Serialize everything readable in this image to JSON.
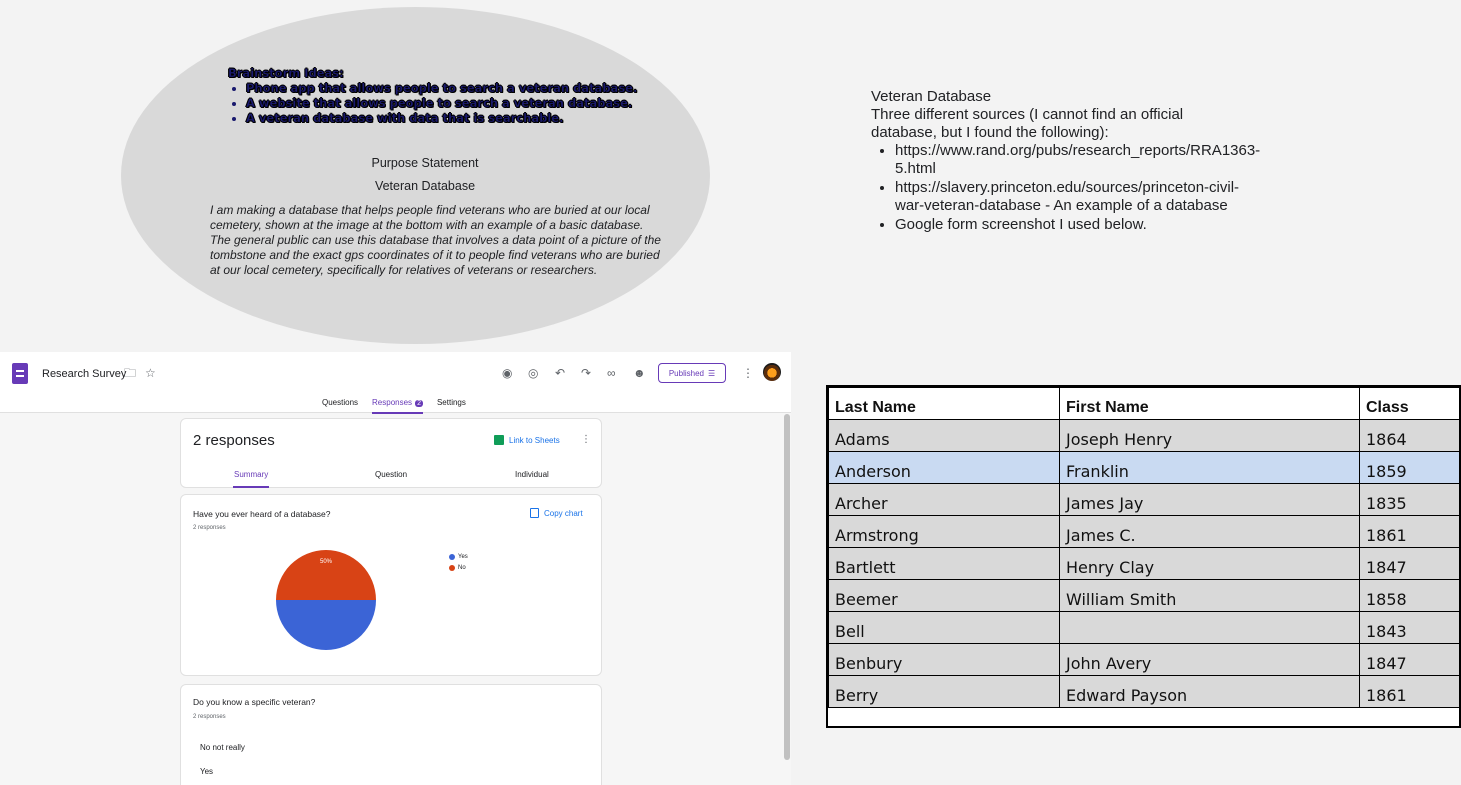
{
  "brainstorm": {
    "heading": "Brainstorm Ideas:",
    "items": [
      "Phone app that allows people to search a veteran database.",
      "A website that allows people to search a veteran database.",
      "A veteran database with data that is searchable."
    ]
  },
  "purpose": {
    "title": "Purpose Statement",
    "subtitle": "Veteran Database",
    "text": "I am making a database that helps people find veterans who are buried at our local cemetery, shown at the image at the bottom with an example of a basic database.  The general public can use this database that involves a data point of a picture of the tombstone and the exact gps coordinates of it to people find veterans who are buried at our local cemetery, specifically for relatives of veterans or researchers."
  },
  "notes": {
    "title": "Veteran Database",
    "intro": "Three different sources (I cannot find an official database, but I found the following):",
    "items": [
      "https://www.rand.org/pubs/research_reports/RRA1363-5.html",
      "https://slavery.princeton.edu/sources/princeton-civil-war-veteran-database - An example of a database",
      "Google form screenshot I used below."
    ]
  },
  "forms": {
    "title": "Research Survey",
    "published_label": "Published",
    "tabs": {
      "questions": "Questions",
      "responses": "Responses",
      "responses_badge": "2",
      "settings": "Settings"
    },
    "response_count": "2 responses",
    "link_sheets": "Link to Sheets",
    "subtabs": {
      "summary": "Summary",
      "question": "Question",
      "individual": "Individual"
    },
    "q1": {
      "title": "Have you ever heard of a database?",
      "sub": "2 responses",
      "copy_chart": "Copy chart"
    },
    "q2": {
      "title": "Do you know a specific veteran?",
      "sub": "2 responses",
      "answers": [
        "No not really",
        "Yes"
      ]
    },
    "colors": {
      "yes": "#3b64d6",
      "no": "#d84315",
      "accent": "#673ab7"
    }
  },
  "chart_data": {
    "type": "pie",
    "categories": [
      "Yes",
      "No"
    ],
    "values": [
      50,
      50
    ],
    "labels": [
      "50%",
      "50%"
    ],
    "colors": [
      "#3b64d6",
      "#d84315"
    ],
    "legend": "right"
  },
  "table": {
    "headers": [
      "Last Name",
      "First Name",
      "Class"
    ],
    "rows": [
      [
        "Adams",
        "Joseph Henry",
        "1864"
      ],
      [
        "Anderson",
        "Franklin",
        "1859"
      ],
      [
        "Archer",
        "James Jay",
        "1835"
      ],
      [
        "Armstrong",
        "James C.",
        "1861"
      ],
      [
        "Bartlett",
        "Henry Clay",
        "1847"
      ],
      [
        "Beemer",
        "William Smith",
        "1858"
      ],
      [
        "Bell",
        "",
        "1843"
      ],
      [
        "Benbury",
        "John Avery",
        "1847"
      ],
      [
        "Berry",
        "Edward Payson",
        "1861"
      ]
    ],
    "selected_row": 1
  }
}
